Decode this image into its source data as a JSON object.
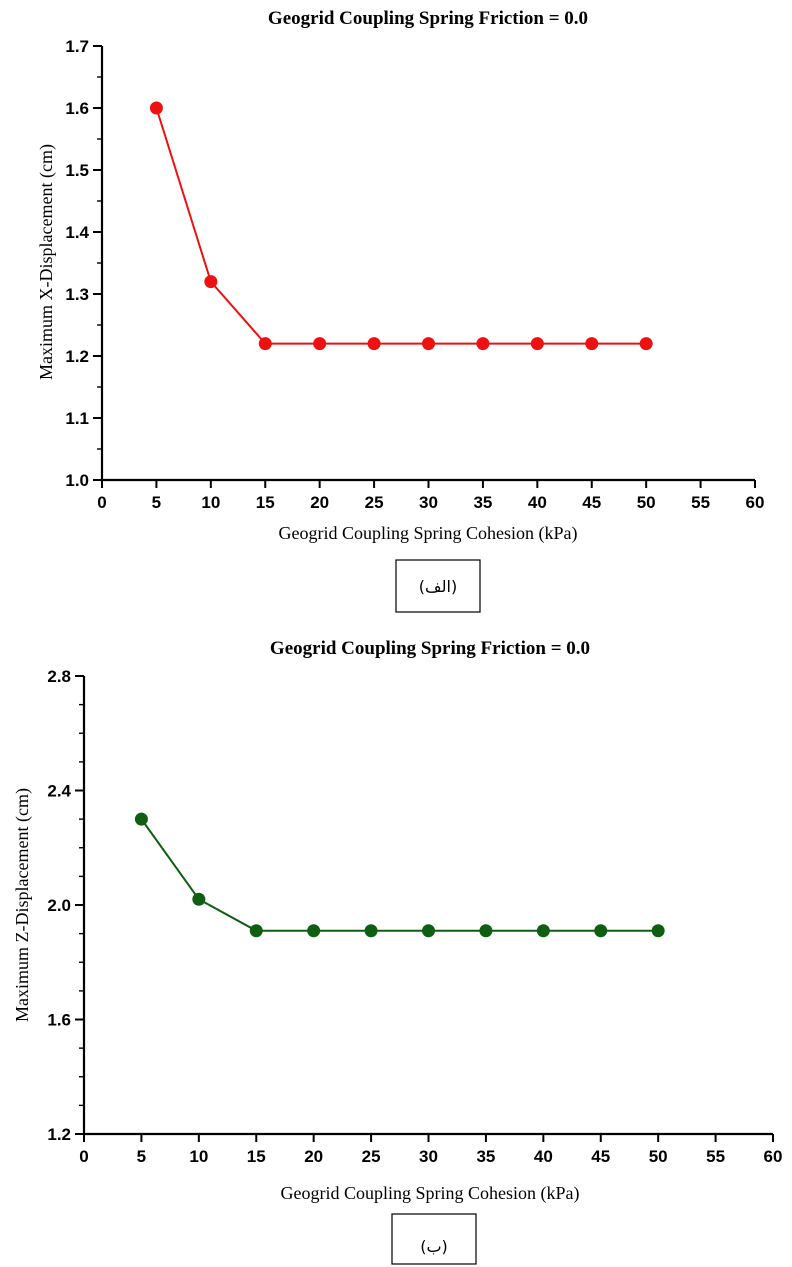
{
  "chart_data": [
    {
      "type": "line",
      "title": "Geogrid Coupling Spring Friction = 0.0",
      "xlabel": "Geogrid Coupling Spring Cohesion (kPa)",
      "ylabel": "Maximum X-Displacement (cm)",
      "xlim": [
        0,
        60
      ],
      "ylim": [
        1.0,
        1.7
      ],
      "xticks": [
        "0",
        "5",
        "10",
        "15",
        "20",
        "25",
        "30",
        "35",
        "40",
        "45",
        "50",
        "55",
        "60"
      ],
      "yticks": [
        "1.0",
        "1.1",
        "1.2",
        "1.3",
        "1.4",
        "1.5",
        "1.6",
        "1.7"
      ],
      "grid": false,
      "color": "#ee1111",
      "series": [
        {
          "x": [
            5,
            10,
            15,
            20,
            25,
            30,
            35,
            40,
            45,
            50
          ],
          "values": [
            1.6,
            1.32,
            1.22,
            1.22,
            1.22,
            1.22,
            1.22,
            1.22,
            1.22,
            1.22
          ]
        }
      ],
      "caption": "(الف)"
    },
    {
      "type": "line",
      "title": "Geogrid Coupling Spring Friction = 0.0",
      "xlabel": "Geogrid Coupling Spring Cohesion (kPa)",
      "ylabel": "Maximum Z-Displacement (cm)",
      "xlim": [
        0,
        60
      ],
      "ylim": [
        1.2,
        2.8
      ],
      "xticks": [
        "0",
        "5",
        "10",
        "15",
        "20",
        "25",
        "30",
        "35",
        "40",
        "45",
        "50",
        "55",
        "60"
      ],
      "yticks": [
        "1.2",
        "1.6",
        "2.0",
        "2.4",
        "2.8"
      ],
      "grid": false,
      "color": "#0f5e12",
      "series": [
        {
          "x": [
            5,
            10,
            15,
            20,
            25,
            30,
            35,
            40,
            45,
            50
          ],
          "values": [
            2.3,
            2.02,
            1.91,
            1.91,
            1.91,
            1.91,
            1.91,
            1.91,
            1.91,
            1.91
          ]
        }
      ],
      "caption": "(ب)"
    }
  ]
}
